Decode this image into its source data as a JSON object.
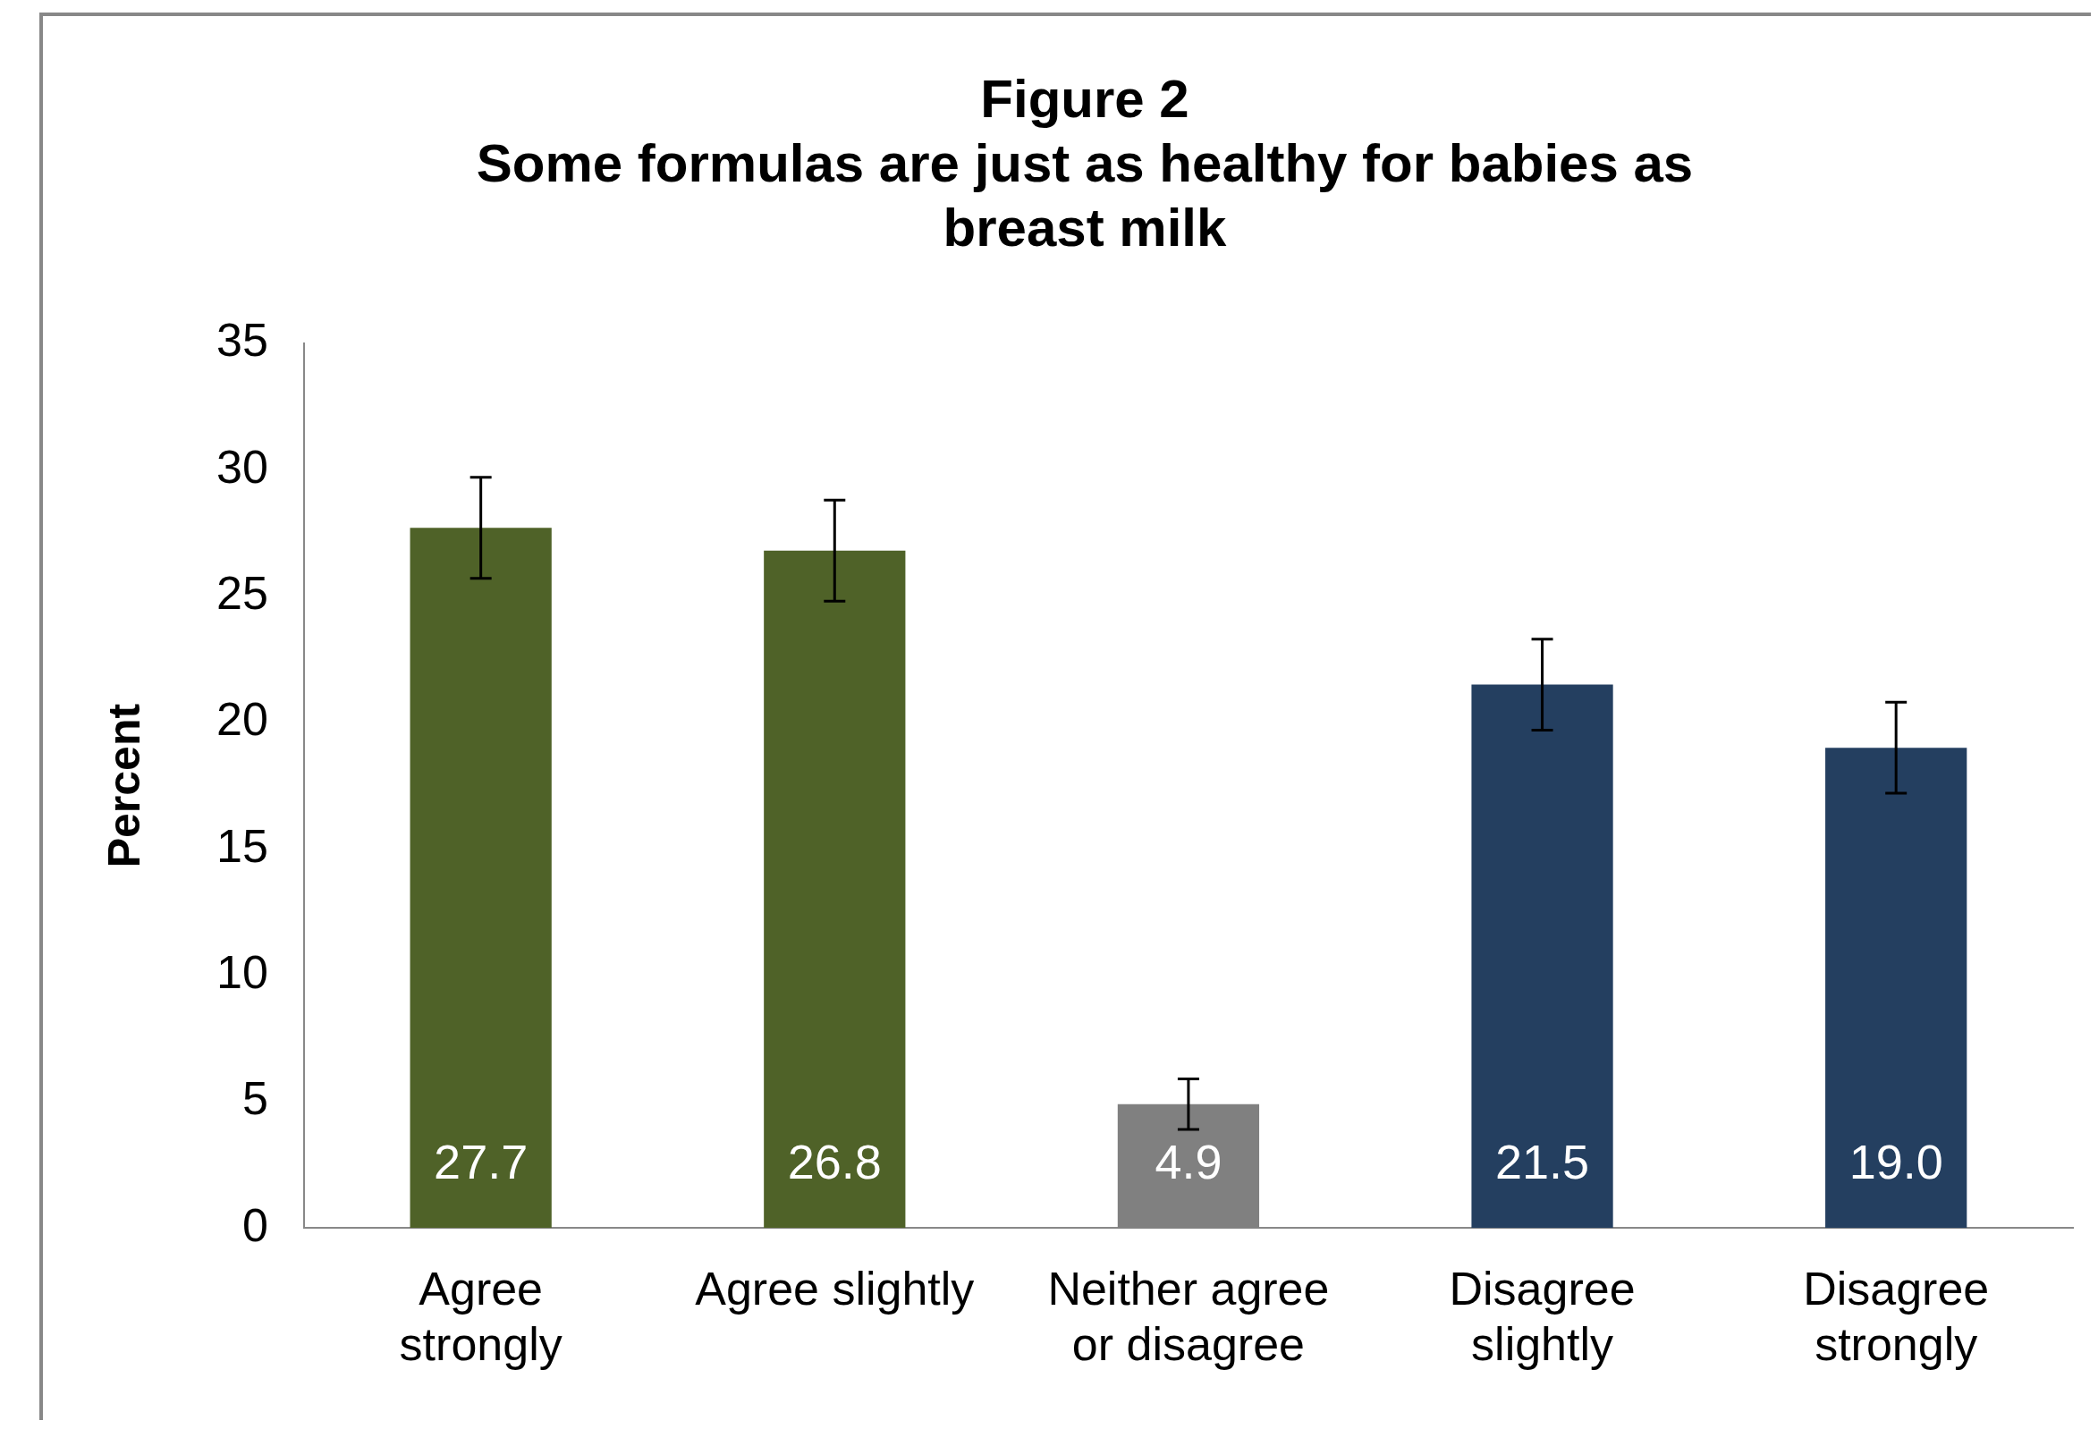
{
  "chart_data": {
    "type": "bar",
    "title": "Figure 2",
    "subtitle": "Some formulas are just as healthy for babies as breast milk",
    "ylabel": "Percent",
    "categories": [
      "Agree strongly",
      "Agree slightly",
      "Neither agree or disagree",
      "Disagree slightly",
      "Disagree strongly"
    ],
    "values": [
      27.7,
      26.8,
      4.9,
      21.5,
      19.0
    ],
    "colors": [
      "#4f6228",
      "#4f6228",
      "#808080",
      "#243f60",
      "#243f60"
    ],
    "errors": [
      2.0,
      2.0,
      1.0,
      1.8,
      1.8
    ],
    "value_labels": [
      "27.7",
      "26.8",
      "4.9",
      "21.5",
      "19.0"
    ],
    "ylim": [
      0,
      35
    ],
    "yticks": [
      0,
      5,
      10,
      15,
      20,
      25,
      30,
      35
    ],
    "grid": false,
    "legend": false
  }
}
